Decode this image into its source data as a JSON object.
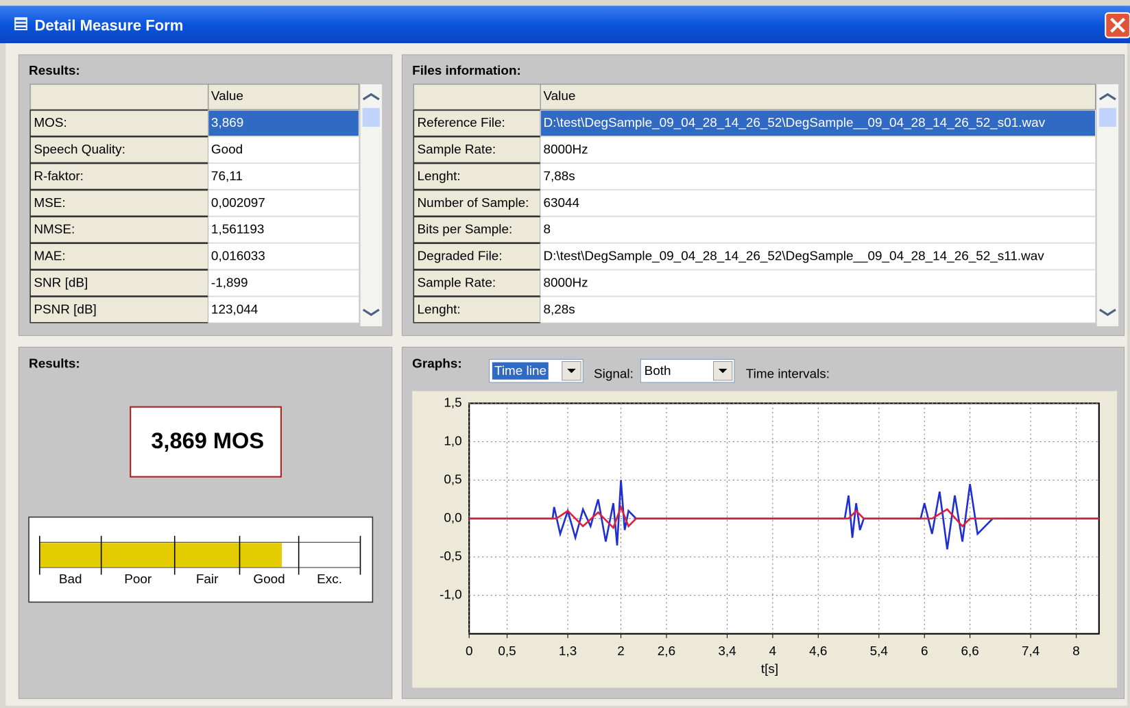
{
  "window": {
    "title": "Detail Measure Form"
  },
  "results_table": {
    "title": "Results:",
    "header": "Value",
    "rows": [
      [
        "MOS:",
        "3,869"
      ],
      [
        "Speech Quality:",
        "Good"
      ],
      [
        "R-faktor:",
        "76,11"
      ],
      [
        "MSE:",
        "0,002097"
      ],
      [
        "NMSE:",
        "1,561193"
      ],
      [
        "MAE:",
        "0,016033"
      ],
      [
        "SNR [dB]",
        "-1,899"
      ],
      [
        "PSNR [dB]",
        "123,044"
      ]
    ]
  },
  "files_table": {
    "title": "Files information:",
    "header": "Value",
    "rows": [
      [
        "Reference File:",
        "D:\\test\\DegSample_09_04_28_14_26_52\\DegSample__09_04_28_14_26_52_s01.wav"
      ],
      [
        "Sample Rate:",
        "8000Hz"
      ],
      [
        "Lenght:",
        "7,88s"
      ],
      [
        "Number of Sample:",
        "63044"
      ],
      [
        "Bits per Sample:",
        "8"
      ],
      [
        "Degraded File:",
        "D:\\test\\DegSample_09_04_28_14_26_52\\DegSample__09_04_28_14_26_52_s11.wav"
      ],
      [
        "Sample Rate:",
        "8000Hz"
      ],
      [
        "Lenght:",
        "8,28s"
      ]
    ]
  },
  "results_panel": {
    "title": "Results:",
    "mos_display": "3,869 MOS",
    "gauge": {
      "value": 3.869,
      "range": [
        1,
        4.8
      ],
      "ticks": [
        1,
        1.73,
        2.6,
        3.37,
        4.07,
        4.8
      ],
      "labels": [
        "Bad",
        "Poor",
        "Fair",
        "Good",
        "Exc."
      ],
      "color": "#e3cc00"
    }
  },
  "graphs_panel": {
    "title": "Graphs:",
    "view": "Time line",
    "signal_label": "Signal:",
    "signal": "Both",
    "intervals_label": "Time intervals:"
  },
  "chart_data": {
    "type": "line",
    "xlabel": "t[s]",
    "xlim": [
      0,
      8.3
    ],
    "ylim": [
      -1.5,
      1.5
    ],
    "grid": true,
    "xticks": [
      0,
      {
        "value": 0.5,
        "label": "0,5"
      },
      {
        "value": 1.3,
        "label": "1,3"
      },
      2,
      {
        "value": 2.6,
        "label": "2,6"
      },
      {
        "value": 3.4,
        "label": "3,4"
      },
      4,
      {
        "value": 4.6,
        "label": "4,6"
      },
      {
        "value": 5.4,
        "label": "5,4"
      },
      6,
      {
        "value": 6.6,
        "label": "6,6"
      },
      {
        "value": 7.4,
        "label": "7,4"
      },
      8
    ],
    "yticks": [
      {
        "value": 1.5,
        "label": "1,5"
      },
      {
        "value": 1.0,
        "label": "1,0"
      },
      {
        "value": 0.5,
        "label": "0,5"
      },
      {
        "value": 0.0,
        "label": "0,0"
      },
      {
        "value": -0.5,
        "label": "-0,5"
      },
      {
        "value": -1.0,
        "label": "-1,0"
      }
    ],
    "series": [
      {
        "color": "#1f2fd0",
        "x": [
          0,
          1.1,
          1.12,
          1.2,
          1.3,
          1.4,
          1.5,
          1.6,
          1.7,
          1.8,
          1.9,
          1.95,
          2.0,
          2.05,
          2.1,
          2.2,
          4.95,
          5.0,
          5.05,
          5.1,
          5.15,
          5.2,
          5.95,
          6.0,
          6.1,
          6.2,
          6.3,
          6.4,
          6.5,
          6.6,
          6.7,
          6.9,
          8.3
        ],
        "values": [
          0,
          0,
          0.15,
          -0.2,
          0.1,
          -0.25,
          0.12,
          -0.1,
          0.25,
          -0.3,
          0.2,
          -0.35,
          0.5,
          -0.15,
          0.1,
          0,
          0,
          0.3,
          -0.25,
          0.2,
          -0.15,
          0,
          0,
          0.2,
          -0.2,
          0.35,
          -0.4,
          0.3,
          -0.3,
          0.45,
          -0.2,
          0,
          0
        ]
      },
      {
        "color": "#e0203a",
        "x": [
          0,
          1.15,
          1.3,
          1.5,
          1.7,
          1.9,
          2.0,
          2.1,
          2.2,
          5.0,
          5.1,
          5.2,
          6.1,
          6.3,
          6.5,
          6.6,
          8.3
        ],
        "values": [
          0,
          0,
          0.1,
          -0.1,
          0.08,
          -0.12,
          0.15,
          -0.1,
          0,
          0,
          0.1,
          0,
          0,
          0.12,
          -0.1,
          0,
          0
        ]
      }
    ]
  }
}
